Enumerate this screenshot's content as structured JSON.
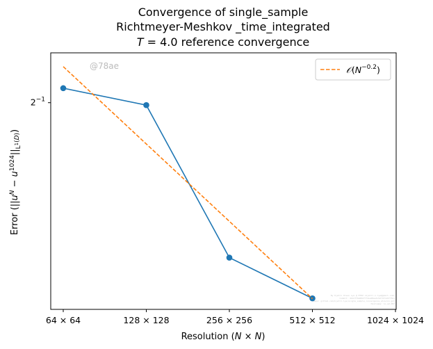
{
  "chart_data": {
    "type": "line",
    "title": [
      "Convergence of single_sample",
      "Richtmeyer-Meshkov _time_integrated",
      "T = 4.0 reference convergence"
    ],
    "xlabel": "Resolution (N × N)",
    "ylabel": "Error (||u^N − u^1024||_L¹(D))",
    "x_scale": "log2",
    "y_scale": "log2",
    "x_ticks": [
      {
        "value": 64,
        "label": "64 × 64"
      },
      {
        "value": 128,
        "label": "128 × 128"
      },
      {
        "value": 256,
        "label": "256 × 256"
      },
      {
        "value": 512,
        "label": "512 × 512"
      },
      {
        "value": 1024,
        "label": "1024 × 1024"
      }
    ],
    "y_ticks": [
      {
        "value": 0.5,
        "label": "2^-1"
      }
    ],
    "xlim": [
      64,
      1024
    ],
    "ylim": [
      0.3565,
      0.5425
    ],
    "series": [
      {
        "name": "",
        "style": "solid-marker",
        "color": "#1f77b4",
        "x": [
          64,
          128,
          256,
          512
        ],
        "y": [
          0.512,
          0.498,
          0.388,
          0.363
        ]
      },
      {
        "name": "𝒪(N^−0.2)",
        "style": "dashed",
        "color": "#ff7f0e",
        "x": [
          64,
          512
        ],
        "y": [
          0.5304,
          0.3628
        ]
      }
    ],
    "legend": {
      "position": "top-right",
      "entries": [
        "𝒪(N^−0.2)"
      ]
    },
    "grid": false,
    "watermark": "@78ae",
    "fine_print": [
      "By Kjetil Olsen Lye @ ETHZ <kjetil.o.lye@gmail.com>",
      "Commit: 4b1dff0e88277f4ea00ee6c9d74fcb07f5b1",
      "Repo: github.com/kjetil-lye/single_sample_convergence_alsvinn.git",
      "Hostname: lo-a2-053"
    ]
  }
}
